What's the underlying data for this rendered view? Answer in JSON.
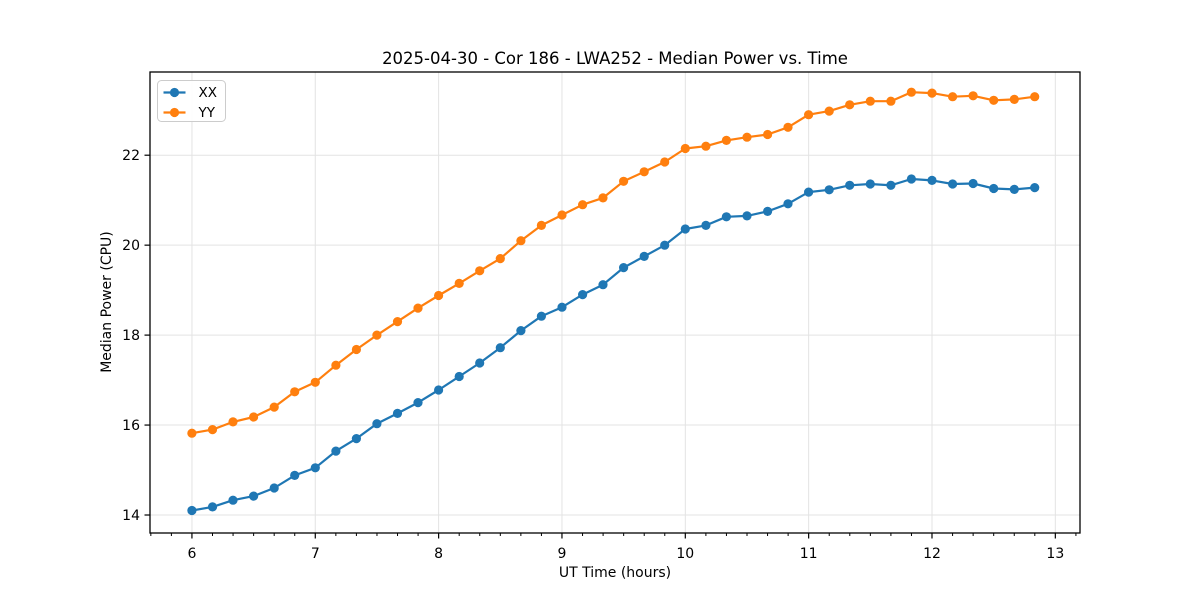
{
  "chart_data": {
    "type": "line",
    "title": "2025-04-30 - Cor 186 - LWA252 - Median Power vs. Time",
    "xlabel": "UT Time (hours)",
    "ylabel": "Median Power (CPU)",
    "xlim": [
      5.66,
      13.2
    ],
    "ylim": [
      13.6,
      23.85
    ],
    "xticks": [
      6,
      7,
      8,
      9,
      10,
      11,
      12,
      13
    ],
    "yticks": [
      14,
      16,
      18,
      20,
      22
    ],
    "x_minor_step": 0.16667,
    "grid": true,
    "grid_color": "#e3e3e3",
    "spine_color": "#000000",
    "legend": {
      "position": "upper-left",
      "items": [
        "XX",
        "YY"
      ]
    },
    "x": [
      6.0,
      6.167,
      6.333,
      6.5,
      6.667,
      6.833,
      7.0,
      7.167,
      7.333,
      7.5,
      7.667,
      7.833,
      8.0,
      8.167,
      8.333,
      8.5,
      8.667,
      8.833,
      9.0,
      9.167,
      9.333,
      9.5,
      9.667,
      9.833,
      10.0,
      10.167,
      10.333,
      10.5,
      10.667,
      10.833,
      11.0,
      11.167,
      11.333,
      11.5,
      11.667,
      11.833,
      12.0,
      12.167,
      12.333,
      12.5,
      12.667,
      12.833
    ],
    "series": [
      {
        "name": "XX",
        "color": "#1f77b4",
        "values": [
          14.1,
          14.18,
          14.33,
          14.42,
          14.6,
          14.88,
          15.05,
          15.42,
          15.7,
          16.03,
          16.26,
          16.5,
          16.78,
          17.08,
          17.38,
          17.72,
          18.1,
          18.42,
          18.62,
          18.9,
          19.12,
          19.5,
          19.75,
          20.0,
          20.36,
          20.44,
          20.63,
          20.65,
          20.75,
          20.92,
          21.18,
          21.23,
          21.33,
          21.36,
          21.33,
          21.47,
          21.44,
          21.36,
          21.37,
          21.26,
          21.24,
          21.28
        ]
      },
      {
        "name": "YY",
        "color": "#ff7f0e",
        "values": [
          15.82,
          15.9,
          16.07,
          16.18,
          16.4,
          16.74,
          16.95,
          17.33,
          17.68,
          18.0,
          18.3,
          18.6,
          18.88,
          19.15,
          19.43,
          19.7,
          20.1,
          20.44,
          20.67,
          20.9,
          21.05,
          21.42,
          21.63,
          21.85,
          22.15,
          22.2,
          22.33,
          22.4,
          22.46,
          22.62,
          22.9,
          22.98,
          23.12,
          23.2,
          23.2,
          23.4,
          23.38,
          23.3,
          23.32,
          23.22,
          23.24,
          23.3
        ]
      }
    ]
  }
}
